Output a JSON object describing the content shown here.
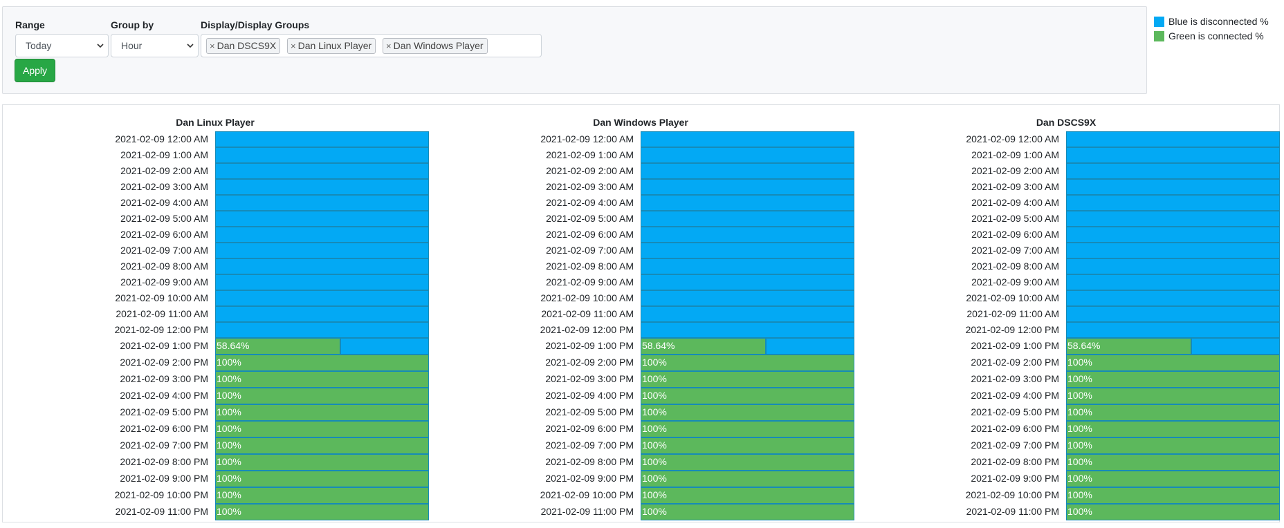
{
  "filters": {
    "range_label": "Range",
    "range_value": "Today",
    "groupby_label": "Group by",
    "groupby_value": "Hour",
    "display_label": "Display/Display Groups",
    "tags": [
      "Dan DSCS9X",
      "Dan Linux Player",
      "Dan Windows Player"
    ],
    "apply_label": "Apply"
  },
  "legend": {
    "items": [
      {
        "label": "Blue is disconnected %",
        "color": "#03a9f4"
      },
      {
        "label": "Green is connected %",
        "color": "#5cb85c"
      }
    ]
  },
  "colors": {
    "disconnected": "#03a9f4",
    "connected": "#5cb85c"
  },
  "chart_data": [
    {
      "type": "bar",
      "orientation": "horizontal",
      "stacked": true,
      "title": "Dan Linux Player",
      "categories": [
        "2021-02-09 12:00 AM",
        "2021-02-09 1:00 AM",
        "2021-02-09 2:00 AM",
        "2021-02-09 3:00 AM",
        "2021-02-09 4:00 AM",
        "2021-02-09 5:00 AM",
        "2021-02-09 6:00 AM",
        "2021-02-09 7:00 AM",
        "2021-02-09 8:00 AM",
        "2021-02-09 9:00 AM",
        "2021-02-09 10:00 AM",
        "2021-02-09 11:00 AM",
        "2021-02-09 12:00 PM",
        "2021-02-09 1:00 PM",
        "2021-02-09 2:00 PM",
        "2021-02-09 3:00 PM",
        "2021-02-09 4:00 PM",
        "2021-02-09 5:00 PM",
        "2021-02-09 6:00 PM",
        "2021-02-09 7:00 PM",
        "2021-02-09 8:00 PM",
        "2021-02-09 9:00 PM",
        "2021-02-09 10:00 PM",
        "2021-02-09 11:00 PM"
      ],
      "series": [
        {
          "values": [
            0,
            0,
            0,
            0,
            0,
            0,
            0,
            0,
            0,
            0,
            0,
            0,
            0,
            58.64,
            100,
            100,
            100,
            100,
            100,
            100,
            100,
            100,
            100,
            100
          ]
        },
        {
          "values": [
            100,
            100,
            100,
            100,
            100,
            100,
            100,
            100,
            100,
            100,
            100,
            100,
            100,
            41.36,
            0,
            0,
            0,
            0,
            0,
            0,
            0,
            0,
            0,
            0
          ]
        }
      ],
      "xlim": [
        0,
        100
      ]
    },
    {
      "type": "bar",
      "orientation": "horizontal",
      "stacked": true,
      "title": "Dan Windows Player",
      "categories": [
        "2021-02-09 12:00 AM",
        "2021-02-09 1:00 AM",
        "2021-02-09 2:00 AM",
        "2021-02-09 3:00 AM",
        "2021-02-09 4:00 AM",
        "2021-02-09 5:00 AM",
        "2021-02-09 6:00 AM",
        "2021-02-09 7:00 AM",
        "2021-02-09 8:00 AM",
        "2021-02-09 9:00 AM",
        "2021-02-09 10:00 AM",
        "2021-02-09 11:00 AM",
        "2021-02-09 12:00 PM",
        "2021-02-09 1:00 PM",
        "2021-02-09 2:00 PM",
        "2021-02-09 3:00 PM",
        "2021-02-09 4:00 PM",
        "2021-02-09 5:00 PM",
        "2021-02-09 6:00 PM",
        "2021-02-09 7:00 PM",
        "2021-02-09 8:00 PM",
        "2021-02-09 9:00 PM",
        "2021-02-09 10:00 PM",
        "2021-02-09 11:00 PM"
      ],
      "series": [
        {
          "values": [
            0,
            0,
            0,
            0,
            0,
            0,
            0,
            0,
            0,
            0,
            0,
            0,
            0,
            58.64,
            100,
            100,
            100,
            100,
            100,
            100,
            100,
            100,
            100,
            100
          ]
        },
        {
          "values": [
            100,
            100,
            100,
            100,
            100,
            100,
            100,
            100,
            100,
            100,
            100,
            100,
            100,
            41.36,
            0,
            0,
            0,
            0,
            0,
            0,
            0,
            0,
            0,
            0
          ]
        }
      ],
      "xlim": [
        0,
        100
      ]
    },
    {
      "type": "bar",
      "orientation": "horizontal",
      "stacked": true,
      "title": "Dan DSCS9X",
      "categories": [
        "2021-02-09 12:00 AM",
        "2021-02-09 1:00 AM",
        "2021-02-09 2:00 AM",
        "2021-02-09 3:00 AM",
        "2021-02-09 4:00 AM",
        "2021-02-09 5:00 AM",
        "2021-02-09 6:00 AM",
        "2021-02-09 7:00 AM",
        "2021-02-09 8:00 AM",
        "2021-02-09 9:00 AM",
        "2021-02-09 10:00 AM",
        "2021-02-09 11:00 AM",
        "2021-02-09 12:00 PM",
        "2021-02-09 1:00 PM",
        "2021-02-09 2:00 PM",
        "2021-02-09 3:00 PM",
        "2021-02-09 4:00 PM",
        "2021-02-09 5:00 PM",
        "2021-02-09 6:00 PM",
        "2021-02-09 7:00 PM",
        "2021-02-09 8:00 PM",
        "2021-02-09 9:00 PM",
        "2021-02-09 10:00 PM",
        "2021-02-09 11:00 PM"
      ],
      "series": [
        {
          "values": [
            0,
            0,
            0,
            0,
            0,
            0,
            0,
            0,
            0,
            0,
            0,
            0,
            0,
            58.64,
            100,
            100,
            100,
            100,
            100,
            100,
            100,
            100,
            100,
            100
          ]
        },
        {
          "values": [
            100,
            100,
            100,
            100,
            100,
            100,
            100,
            100,
            100,
            100,
            100,
            100,
            100,
            41.36,
            0,
            0,
            0,
            0,
            0,
            0,
            0,
            0,
            0,
            0
          ]
        }
      ],
      "xlim": [
        0,
        100
      ]
    }
  ]
}
